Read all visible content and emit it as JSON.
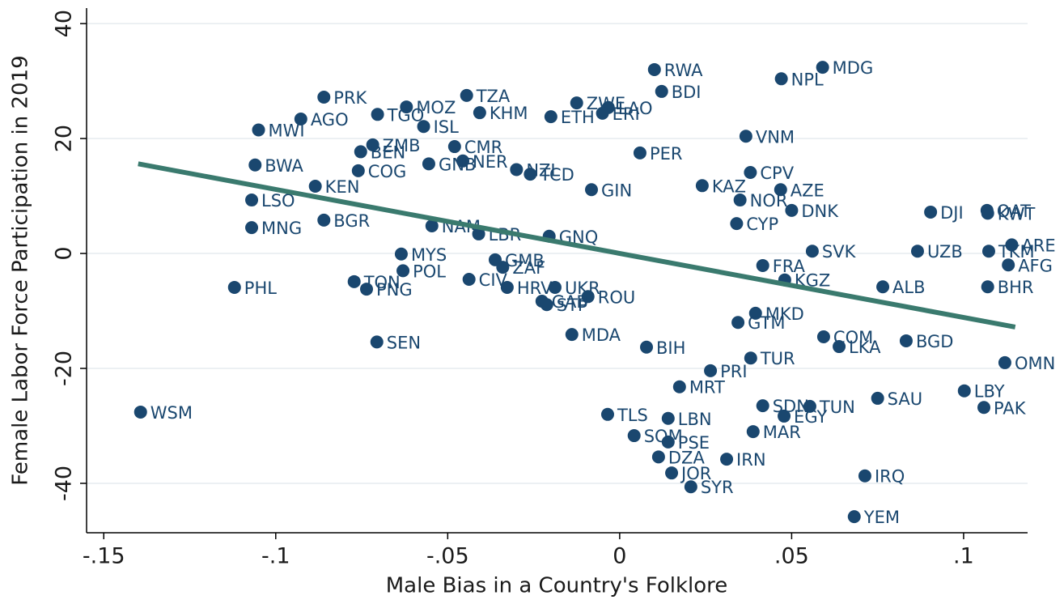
{
  "chart_data": {
    "type": "scatter",
    "x_label": "Male Bias in a Country's Folklore",
    "y_label": "Female Labor Force Participation in 2019",
    "color": "#1a476f",
    "xlim": [
      -0.155,
      0.1186
    ],
    "ylim": [
      -48.6,
      42.7
    ],
    "xticks": [
      {
        "value": -0.15,
        "label": "-.15"
      },
      {
        "value": -0.1,
        "label": "-.1"
      },
      {
        "value": -0.05,
        "label": "-.05"
      },
      0,
      {
        "value": 0.05,
        "label": ".05"
      },
      {
        "value": 0.1,
        "label": ".1"
      }
    ],
    "yticks": [
      -40,
      -20,
      0,
      20,
      40
    ],
    "grid": true,
    "labels": [
      "RWA",
      "MDG",
      "NPL",
      "BDI",
      "PRK",
      "TZA",
      "MOZ",
      "TGO",
      "AGO",
      "ZWE",
      "LAO",
      "ERI",
      "KHM",
      "ETH",
      "ISL",
      "MWI",
      "VNM",
      "ZMB",
      "CMR",
      "BEN",
      "PER",
      "NER",
      "BWA",
      "GNB",
      "NZL",
      "COG",
      "CPV",
      "TCD",
      "LSO",
      "KEN",
      "GIN",
      "KAZ",
      "AZE",
      "NOR",
      "MNG",
      "BGR",
      "NAM",
      "LBR",
      "GNQ",
      "DNK",
      "CYP",
      "DJI",
      "QAT",
      "KWT",
      "UZB",
      "SVK",
      "TKM",
      "ARE",
      "AFG",
      "MYS",
      "POL",
      "CIV",
      "GMB",
      "ZAF",
      "HRV",
      "UKR",
      "TON",
      "PNG",
      "PHL",
      "ROU",
      "GAB",
      "STP",
      "ALB",
      "BHR",
      "KGZ",
      "FRA",
      "MKD",
      "GTM",
      "MDA",
      "BIH",
      "SEN",
      "COM",
      "LKA",
      "BGD",
      "OMN",
      "TUR",
      "PRI",
      "MRT",
      "LBY",
      "TUN",
      "SAU",
      "PAK",
      "EGY",
      "SDN",
      "MAR",
      "WSM",
      "TLS",
      "LBN",
      "SOM",
      "PSE",
      "DZA",
      "IRN",
      "JOR",
      "SYR",
      "IRQ",
      "YEM"
    ],
    "x": [
      0.0101,
      0.059,
      0.047,
      0.0122,
      -0.086,
      -0.0445,
      -0.062,
      -0.0704,
      -0.0927,
      -0.0125,
      -0.0033,
      -0.005,
      -0.0407,
      -0.02,
      -0.057,
      -0.105,
      0.0367,
      -0.0718,
      -0.048,
      -0.0753,
      0.0059,
      -0.0456,
      -0.106,
      -0.0555,
      -0.03,
      -0.076,
      0.038,
      -0.026,
      -0.107,
      -0.0885,
      -0.0082,
      0.024,
      0.0468,
      0.035,
      -0.107,
      -0.086,
      -0.0546,
      -0.041,
      -0.0205,
      0.05,
      0.034,
      0.0904,
      0.1068,
      0.107,
      0.0866,
      0.056,
      0.1073,
      0.114,
      0.113,
      -0.0635,
      -0.063,
      -0.0438,
      -0.0362,
      -0.034,
      -0.0327,
      -0.0188,
      -0.0772,
      -0.0736,
      -0.112,
      -0.0092,
      -0.0226,
      -0.0212,
      0.0765,
      0.107,
      0.048,
      0.0416,
      0.0395,
      0.0344,
      -0.0139,
      0.0078,
      -0.0706,
      0.0593,
      0.0638,
      0.0833,
      0.112,
      0.0381,
      0.0264,
      0.0174,
      0.1002,
      0.0553,
      0.075,
      0.1059,
      0.0478,
      0.0416,
      0.0388,
      -0.1393,
      -0.0035,
      0.0141,
      0.0042,
      0.0141,
      0.0113,
      0.0311,
      0.0151,
      0.0207,
      0.0713,
      0.0682
    ],
    "values": [
      32.0,
      32.4,
      30.4,
      28.2,
      27.2,
      27.5,
      25.5,
      24.2,
      23.4,
      26.2,
      25.4,
      24.4,
      24.5,
      23.8,
      22.1,
      21.5,
      20.4,
      18.9,
      18.6,
      17.7,
      17.5,
      16.1,
      15.4,
      15.6,
      14.6,
      14.4,
      14.1,
      13.8,
      9.3,
      11.7,
      11.1,
      11.8,
      11.1,
      9.3,
      4.5,
      5.8,
      4.8,
      3.4,
      3.0,
      7.5,
      5.2,
      7.2,
      7.5,
      7.0,
      0.4,
      0.4,
      0.4,
      1.5,
      -2.0,
      -0.1,
      -3.0,
      -4.5,
      -1.1,
      -2.4,
      -5.9,
      -5.9,
      -4.9,
      -6.2,
      -5.9,
      -7.5,
      -8.3,
      -8.9,
      -5.8,
      -5.8,
      -4.6,
      -2.1,
      -10.4,
      -12.0,
      -14.1,
      -16.3,
      -15.4,
      -14.5,
      -16.2,
      -15.2,
      -19.0,
      -18.2,
      -20.4,
      -23.2,
      -23.9,
      -26.6,
      -25.2,
      -26.8,
      -28.3,
      -26.5,
      -31.0,
      -27.6,
      -28.0,
      -28.7,
      -31.7,
      -32.8,
      -35.4,
      -35.8,
      -38.2,
      -40.6,
      -38.7,
      -45.8
    ],
    "fit_line": {
      "color": "#3a7a6e",
      "x": [
        -0.14,
        0.115
      ],
      "values": [
        15.6,
        -12.8
      ]
    }
  }
}
